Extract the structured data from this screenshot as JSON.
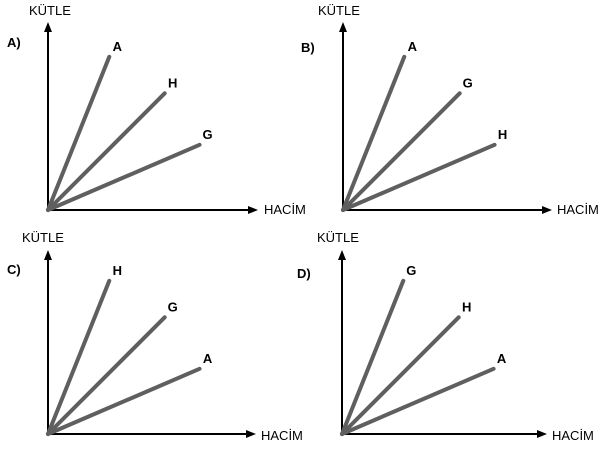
{
  "colors": {
    "line": "#5f5f5f",
    "axis": "#000000",
    "text": "#000000"
  },
  "chart_data": [
    {
      "type": "line",
      "option": "A)",
      "ylabel": "KÜTLE",
      "xlabel": "HACİM",
      "series": [
        {
          "name": "A",
          "x": [
            0,
            1
          ],
          "y": [
            0,
            2.5
          ]
        },
        {
          "name": "H",
          "x": [
            0,
            1
          ],
          "y": [
            0,
            1.0
          ]
        },
        {
          "name": "G",
          "x": [
            0,
            1
          ],
          "y": [
            0,
            0.43
          ]
        }
      ]
    },
    {
      "type": "line",
      "option": "B)",
      "ylabel": "KÜTLE",
      "xlabel": "HACİM",
      "series": [
        {
          "name": "A",
          "x": [
            0,
            1
          ],
          "y": [
            0,
            2.5
          ]
        },
        {
          "name": "G",
          "x": [
            0,
            1
          ],
          "y": [
            0,
            1.0
          ]
        },
        {
          "name": "H",
          "x": [
            0,
            1
          ],
          "y": [
            0,
            0.43
          ]
        }
      ]
    },
    {
      "type": "line",
      "option": "C)",
      "ylabel": "KÜTLE",
      "xlabel": "HACİM",
      "series": [
        {
          "name": "H",
          "x": [
            0,
            1
          ],
          "y": [
            0,
            2.5
          ]
        },
        {
          "name": "G",
          "x": [
            0,
            1
          ],
          "y": [
            0,
            1.0
          ]
        },
        {
          "name": "A",
          "x": [
            0,
            1
          ],
          "y": [
            0,
            0.43
          ]
        }
      ]
    },
    {
      "type": "line",
      "option": "D)",
      "ylabel": "KÜTLE",
      "xlabel": "HACİM",
      "series": [
        {
          "name": "G",
          "x": [
            0,
            1
          ],
          "y": [
            0,
            2.5
          ]
        },
        {
          "name": "H",
          "x": [
            0,
            1
          ],
          "y": [
            0,
            1.0
          ]
        },
        {
          "name": "A",
          "x": [
            0,
            1
          ],
          "y": [
            0,
            0.43
          ]
        }
      ]
    }
  ]
}
